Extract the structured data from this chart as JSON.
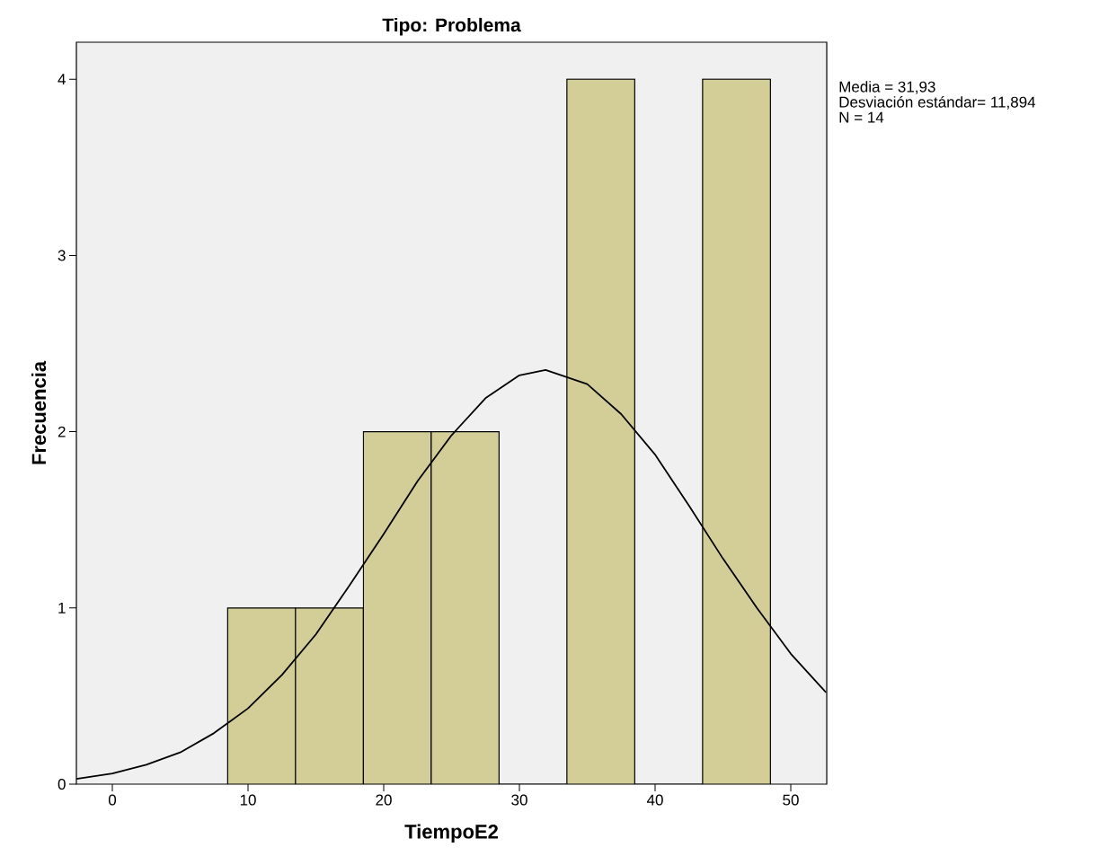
{
  "chart_data": {
    "type": "histogram",
    "title": "Tipo: Problema",
    "xlabel": "TiempoE2",
    "ylabel": "Frecuencia",
    "xlim": [
      -2.65,
      52.65
    ],
    "ylim": [
      0,
      4.21
    ],
    "xticks": [
      0,
      10,
      20,
      30,
      40,
      50
    ],
    "yticks": [
      0,
      1,
      2,
      3,
      4
    ],
    "series": [
      {
        "color": "#d3ce97",
        "bins": [
          8.5,
          13.5,
          18.5,
          23.5,
          28.5,
          33.5,
          38.5,
          43.5,
          48.5
        ],
        "values": [
          1,
          1,
          2,
          2,
          0,
          4,
          0,
          4
        ]
      },
      {
        "type": "line",
        "color": "#000000",
        "x": [
          -2.65,
          0,
          2.5,
          5,
          7.5,
          10,
          12.5,
          15,
          17.5,
          20,
          22.5,
          25,
          27.5,
          30,
          31.93,
          35,
          37.5,
          40,
          42.5,
          45,
          47.5,
          50,
          52.6
        ],
        "values": [
          0.03,
          0.06,
          0.11,
          0.18,
          0.29,
          0.43,
          0.62,
          0.85,
          1.13,
          1.42,
          1.72,
          1.98,
          2.19,
          2.32,
          2.35,
          2.27,
          2.1,
          1.87,
          1.58,
          1.28,
          1.0,
          0.74,
          0.52
        ]
      }
    ],
    "annotations": [
      "Media = 31,93",
      "Desviación estándar= 11,894",
      "N = 14"
    ]
  }
}
